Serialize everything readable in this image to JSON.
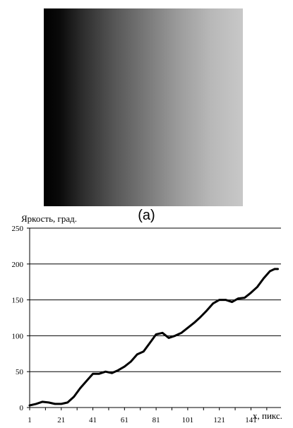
{
  "panel_label": "(a)",
  "chart_data": {
    "type": "line",
    "ylabel": "Яркость, град.",
    "xlabel": "x, пикс.",
    "ylim": [
      0,
      250
    ],
    "y_ticks": [
      0,
      50,
      100,
      150,
      200,
      250
    ],
    "x_ticks": [
      1,
      21,
      41,
      61,
      81,
      101,
      121,
      141
    ],
    "xlim": [
      1,
      160
    ],
    "grid": "horizontal",
    "series": [
      {
        "color": "#000000",
        "x": [
          1,
          5,
          9,
          13,
          17,
          21,
          25,
          29,
          33,
          37,
          41,
          45,
          49,
          53,
          57,
          61,
          65,
          69,
          73,
          77,
          81,
          85,
          89,
          93,
          97,
          101,
          105,
          109,
          113,
          117,
          121,
          125,
          129,
          133,
          137,
          141,
          145,
          149,
          153,
          156,
          158
        ],
        "values": [
          3,
          5,
          8,
          7,
          5,
          5,
          7,
          15,
          27,
          37,
          47,
          47,
          50,
          48,
          52,
          57,
          64,
          74,
          78,
          90,
          102,
          104,
          97,
          100,
          104,
          111,
          118,
          126,
          135,
          145,
          150,
          150,
          147,
          152,
          153,
          160,
          168,
          180,
          190,
          193,
          193
        ]
      }
    ]
  }
}
